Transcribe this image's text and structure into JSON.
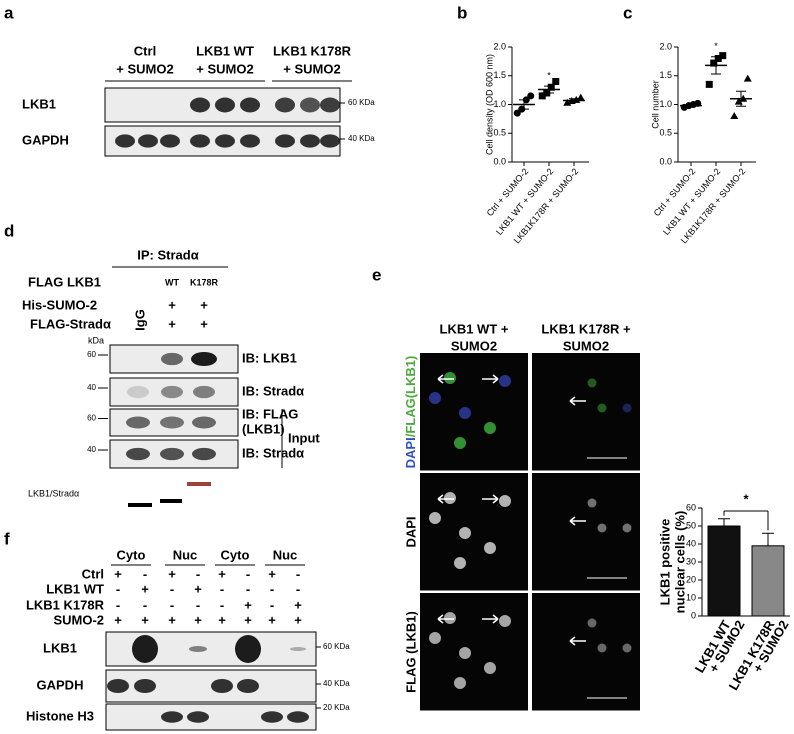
{
  "a": {
    "label": "a",
    "columns": [
      [
        "Ctrl",
        "+ SUMO2"
      ],
      [
        "LKB1 WT",
        "+ SUMO2"
      ],
      [
        "LKB1 K178R",
        "+ SUMO2"
      ]
    ],
    "rows": [
      "LKB1",
      "GAPDH"
    ],
    "markers": [
      "60 KDa",
      "40 KDa"
    ]
  },
  "chart_data": [
    {
      "type": "scatter",
      "label": "b",
      "ylabel": "Cell density (OD 600 nm)",
      "categories": [
        "Ctrl + SUMO-2",
        "LKB1 WT + SUMO-2",
        "LKB1K178R + SUMO-2"
      ],
      "points": [
        [
          0.85,
          0.92,
          1.08,
          1.15
        ],
        [
          1.15,
          1.2,
          1.3,
          1.4
        ],
        [
          1.03,
          1.06,
          1.08,
          1.12
        ]
      ],
      "means": [
        1.0,
        1.26,
        1.07
      ],
      "errors": [
        0.08,
        0.06,
        0.03
      ],
      "markers": [
        "circle",
        "square",
        "triangle"
      ],
      "ylim": [
        0,
        2
      ],
      "yticks": [
        {
          "value": 0,
          "label": "0.0"
        },
        {
          "value": 0.5,
          "label": "0.5"
        },
        {
          "value": 1,
          "label": "1.0"
        },
        {
          "value": 1.5,
          "label": "1.5"
        },
        {
          "value": 2,
          "label": "2.0"
        }
      ],
      "annotation": {
        "text": "*",
        "x": 1
      }
    },
    {
      "type": "scatter",
      "label": "c",
      "ylabel": "Cell number",
      "categories": [
        "Ctrl + SUMO-2",
        "LKB1 WT + SUMO-2",
        "LKB1K178R + SUMO-2"
      ],
      "points": [
        [
          0.95,
          0.98,
          1.0,
          1.02
        ],
        [
          1.35,
          1.72,
          1.8,
          1.85
        ],
        [
          0.8,
          1.05,
          1.1,
          1.45
        ]
      ],
      "means": [
        0.98,
        1.68,
        1.1
      ],
      "errors": [
        0.02,
        0.15,
        0.13
      ],
      "markers": [
        "circle",
        "square",
        "triangle"
      ],
      "ylim": [
        0,
        2
      ],
      "yticks": [
        {
          "value": 0,
          "label": "0.0"
        },
        {
          "value": 0.5,
          "label": "0.5"
        },
        {
          "value": 1,
          "label": "1.0"
        },
        {
          "value": 1.5,
          "label": "1.5"
        },
        {
          "value": 2,
          "label": "2.0"
        }
      ],
      "annotation": {
        "text": "*",
        "x": 1
      }
    },
    {
      "type": "bar",
      "ylabel": [
        "LKB1 positive",
        "nuclear cells (%)"
      ],
      "categories": [
        [
          "LKB1 WT",
          "+ SUMO2"
        ],
        [
          "LKB1 K178R",
          "+ SUMO2"
        ]
      ],
      "values": [
        50,
        39
      ],
      "errors": [
        4,
        7
      ],
      "colors": [
        "#111111",
        "#888888"
      ],
      "ylim": [
        0,
        60
      ],
      "yticks": [
        0,
        10,
        20,
        30,
        40,
        50,
        60
      ],
      "annotation": "*"
    }
  ],
  "d": {
    "label": "d",
    "ip": "IP: Stradα",
    "flag_lkb1": "FLAG LKB1",
    "flag_columns": [
      "WT",
      "K178R"
    ],
    "igg": "IgG",
    "conditions": [
      {
        "label": "His-SUMO-2",
        "signs": [
          "+",
          "+"
        ]
      },
      {
        "label": "FLAG-Stradα",
        "signs": [
          "+",
          "+"
        ]
      }
    ],
    "kda": "kDa",
    "markers": [
      "60",
      "40",
      "60",
      "40"
    ],
    "blots": [
      [
        "IB: LKB1"
      ],
      [
        "IB: Stradα"
      ],
      [
        "IB: FLAG",
        "(LKB1)"
      ],
      [
        "IB: Stradα"
      ]
    ],
    "input": "Input",
    "ratio_label": "LKB1/Stradα"
  },
  "e": {
    "label": "e",
    "columns": [
      [
        "LKB1 WT +",
        "SUMO2"
      ],
      [
        "LKB1 K178R +",
        "SUMO2"
      ]
    ],
    "rows": [
      [
        "DAPI",
        "/FLAG(LKB1)"
      ],
      [
        "DAPI"
      ],
      [
        "FLAG (LKB1)"
      ]
    ]
  },
  "f": {
    "label": "f",
    "columns": [
      "Cyto",
      "Nuc",
      "Cyto",
      "Nuc"
    ],
    "rows": [
      {
        "label": "Ctrl",
        "signs": [
          "+",
          "-",
          "+",
          "-",
          "+",
          "-",
          "+",
          "-"
        ]
      },
      {
        "label": "LKB1 WT",
        "signs": [
          "-",
          "+",
          "-",
          "+",
          "-",
          "-",
          "-",
          "-"
        ]
      },
      {
        "label": "LKB1 K178R",
        "signs": [
          "-",
          "-",
          "-",
          "-",
          "-",
          "+",
          "-",
          "+"
        ]
      },
      {
        "label": "SUMO-2",
        "signs": [
          "+",
          "+",
          "+",
          "+",
          "+",
          "+",
          "+",
          "+"
        ]
      }
    ],
    "blots": [
      "LKB1",
      "GAPDH",
      "Histone H3"
    ],
    "markers": [
      "60 KDa",
      "40 KDa",
      "20 KDa"
    ]
  }
}
